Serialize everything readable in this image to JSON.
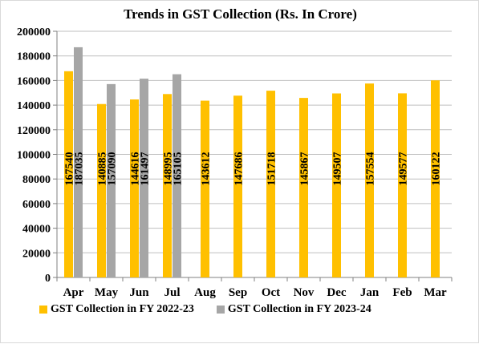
{
  "chart_data": {
    "type": "bar",
    "title": "Trends in GST Collection (Rs. In Crore)",
    "xlabel": "",
    "ylabel": "",
    "categories": [
      "Apr",
      "May",
      "Jun",
      "Jul",
      "Aug",
      "Sep",
      "Oct",
      "Nov",
      "Dec",
      "Jan",
      "Feb",
      "Mar"
    ],
    "ylim": [
      0,
      200000
    ],
    "yticks": [
      "0",
      "20000",
      "40000",
      "60000",
      "80000",
      "100000",
      "120000",
      "140000",
      "160000",
      "180000",
      "200000"
    ],
    "grid": true,
    "legend_position": "bottom",
    "series": [
      {
        "name": "GST Collection in FY 2022-23",
        "color": "#FFC000",
        "values": [
          167540,
          140885,
          144616,
          148995,
          143612,
          147686,
          151718,
          145867,
          149507,
          157554,
          149577,
          160122
        ]
      },
      {
        "name": "GST Collection in FY 2023-24",
        "color": "#A6A6A6",
        "values": [
          187035,
          157090,
          161497,
          165105,
          null,
          null,
          null,
          null,
          null,
          null,
          null,
          null
        ]
      }
    ]
  }
}
